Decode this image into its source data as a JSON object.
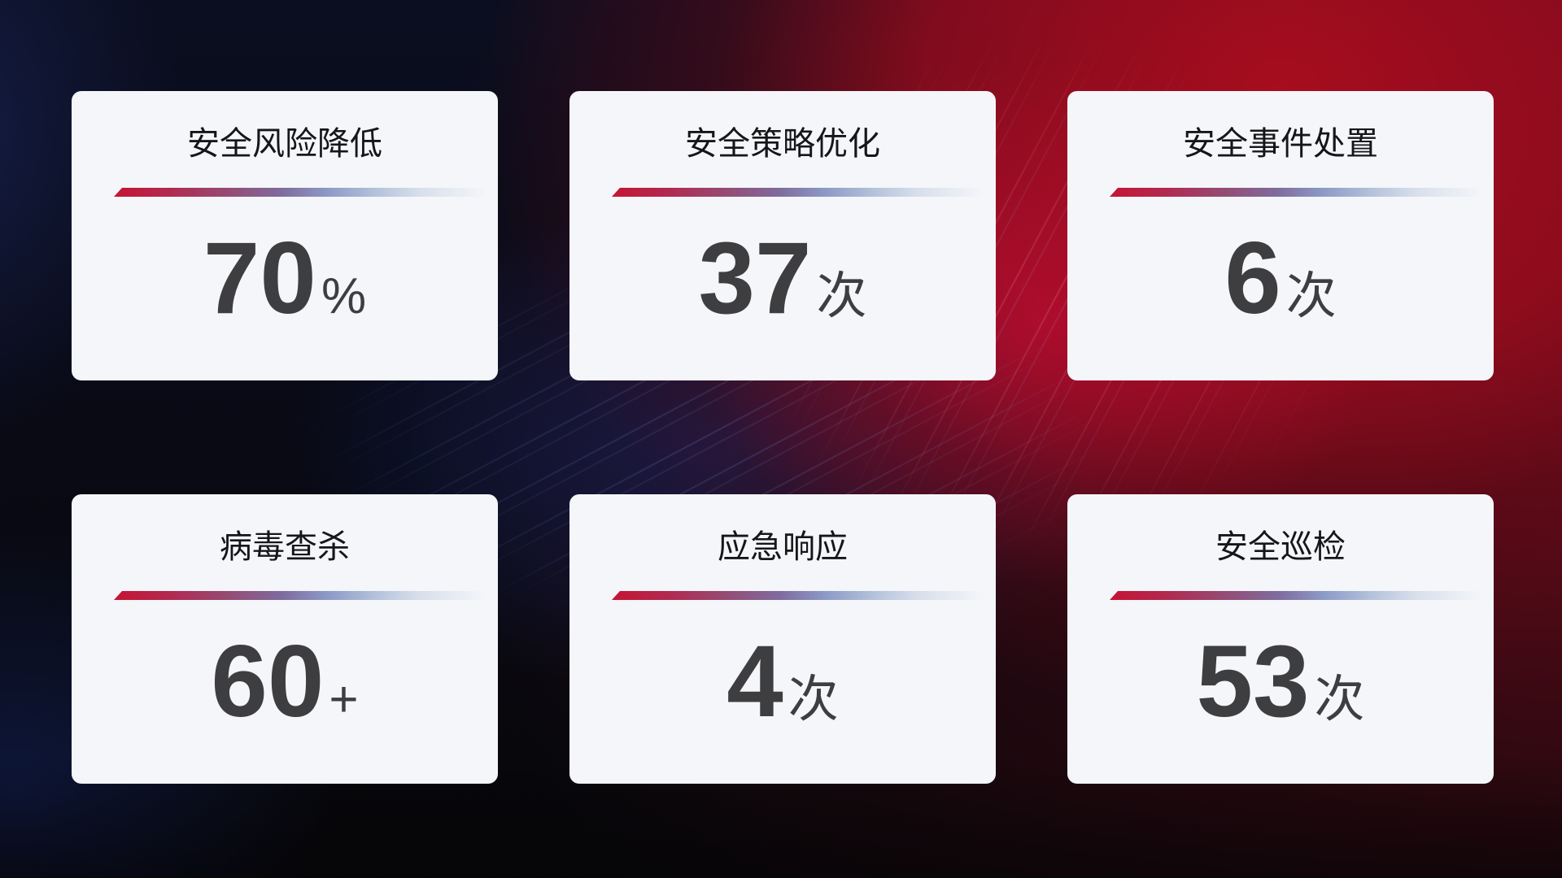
{
  "theme": {
    "accent-red": "#c51433",
    "card-bg": "#f4f6f9",
    "title-color": "#161618",
    "value-color": "#3e3e41",
    "divider-gradient": "linear-gradient(90deg, #c51433 0%, #b22950 15%, #964a72 30%, #7f6b9e 45%, #8e9cc8 58%, #b3c1da 70%, #d8dfeb 82%, rgba(235,239,246,0) 100%)"
  },
  "cards": [
    {
      "title": "安全风险降低",
      "value": "70",
      "unit": "%"
    },
    {
      "title": "安全策略优化",
      "value": "37",
      "unit": "次"
    },
    {
      "title": "安全事件处置",
      "value": "6",
      "unit": "次"
    },
    {
      "title": "病毒查杀",
      "value": "60",
      "unit": "+"
    },
    {
      "title": "应急响应",
      "value": "4",
      "unit": "次"
    },
    {
      "title": "安全巡检",
      "value": "53",
      "unit": "次"
    }
  ]
}
